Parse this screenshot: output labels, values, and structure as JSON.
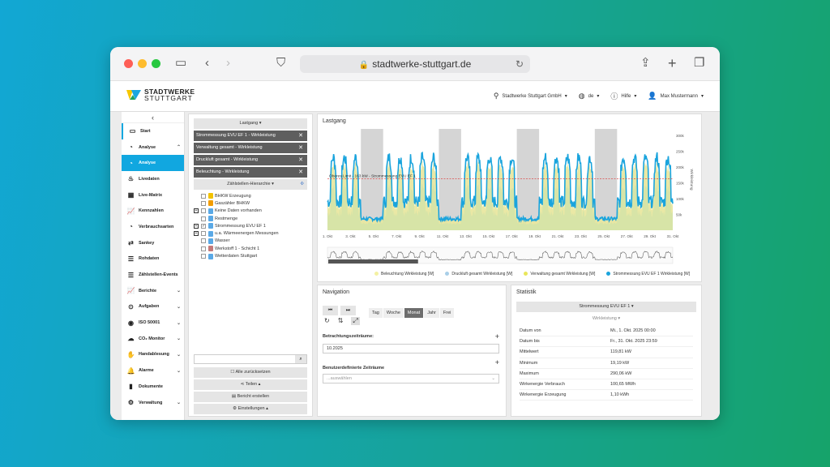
{
  "browser": {
    "url": "stadtwerke-stuttgart.de"
  },
  "header": {
    "logo_line1": "STADTWERKE",
    "logo_line2": "STUTTGART",
    "company": "Stadtwerke Stuttgart GmbH",
    "language": "de",
    "help": "Hilfe",
    "user": "Max Mustermann"
  },
  "sidebar": {
    "items": [
      {
        "label": "Start",
        "icon": "monitor-icon"
      },
      {
        "label": "Analyse",
        "icon": "pie-icon"
      },
      {
        "label": "Analyse",
        "icon": "pie-icon"
      },
      {
        "label": "Livedaten",
        "icon": "live-icon"
      },
      {
        "label": "Live-Matrix",
        "icon": "grid-icon"
      },
      {
        "label": "Kennzahlen",
        "icon": "chart-icon"
      },
      {
        "label": "Verbrauchsarten",
        "icon": "pie-icon"
      },
      {
        "label": "Sankey",
        "icon": "shuffle-icon"
      },
      {
        "label": "Rohdaten",
        "icon": "list-icon"
      },
      {
        "label": "Zählstellen-Events",
        "icon": "list-icon"
      },
      {
        "label": "Berichte",
        "icon": "chart-icon"
      },
      {
        "label": "Aufgaben",
        "icon": "task-icon"
      },
      {
        "label": "ISO 50001",
        "icon": "iso-icon"
      },
      {
        "label": "CO₂ Monitor",
        "icon": "cloud-icon"
      },
      {
        "label": "Handablesung",
        "icon": "hand-icon"
      },
      {
        "label": "Alarme",
        "icon": "bell-icon"
      },
      {
        "label": "Dokumente",
        "icon": "folder-icon"
      },
      {
        "label": "Verwaltung",
        "icon": "gear-icon"
      }
    ]
  },
  "selection": {
    "lastgang_label": "Lastgang ▾",
    "rows": [
      "Strommessung EVU EF 1 - Wirkleistung",
      "Verwaltung gesamt - Wirkleistung",
      "Druckluft gesamt - Wirkleistung",
      "Beleuchtung - Wirkleistung"
    ],
    "hierarchy_label": "Zählstellen-Hierarchie ▾",
    "tree": [
      "BHKW Erzeugung",
      "Gaszähler BHKW",
      "Keine Daten vorhanden",
      "Restmenge",
      "Strommessung EVU EF 1",
      "u.a. Wärmeenergen Messungen",
      "Wasser",
      "Werkstoff 1 - Schicht 1",
      "Wetterdaten Stuttgart"
    ],
    "reset": "Alle zurücksetzen",
    "share": "Teilen ▴",
    "report": "Bericht erstellen",
    "settings": "Einstellungen ▴"
  },
  "chart_panel": {
    "title": "Lastgang",
    "limit_label": "Oberes Limit - 163 kW - Strommessung EVU EF 1",
    "ylabel": "Wirkleistung"
  },
  "chart_data": {
    "type": "area",
    "x": [
      "1. Okt",
      "3. Okt",
      "5. Okt",
      "7. Okt",
      "9. Okt",
      "11. Okt",
      "13. Okt",
      "15. Okt",
      "17. Okt",
      "19. Okt",
      "21. Okt",
      "23. Okt",
      "25. Okt",
      "27. Okt",
      "29. Okt",
      "31. Okt"
    ],
    "y_ticks": [
      "300k",
      "250k",
      "200k",
      "150k",
      "100k",
      "50k"
    ],
    "series": [
      {
        "name": "Beleuchtung Wirkleistung [W]",
        "color": "#f4f1a3"
      },
      {
        "name": "Druckluft gesamt Wirkleistung [W]",
        "color": "#a9cfe8"
      },
      {
        "name": "Verwaltung gesamt Wirkleistung [W]",
        "color": "#e9e65a"
      },
      {
        "name": "Strommessung EVU EF 1 Wirkleistung [W]",
        "color": "#1aa4dd"
      }
    ],
    "limit": 163000,
    "weekend_bands": [
      "4.-5. Okt",
      "11.-12. Okt",
      "18.-19. Okt",
      "25.-26. Okt"
    ]
  },
  "navigation": {
    "title": "Navigation",
    "tabs": [
      "Tag",
      "Woche",
      "Monat",
      "Jahr",
      "Frei"
    ],
    "active_tab": "Monat",
    "period_label": "Betrachtungszeiträume:",
    "period_value": "10.2025",
    "custom_label": "Benutzerdefinierte Zeiträume",
    "custom_placeholder": "...auswählen"
  },
  "statistik": {
    "title": "Statistik",
    "meter": "Strommessung EVU EF 1 ▾",
    "metric": "Wirkleistung ▾",
    "rows": [
      {
        "k": "Datum von",
        "v": "Mi., 1. Okt. 2025 00:00"
      },
      {
        "k": "Datum bis",
        "v": "Fr., 31. Okt. 2025 23:59"
      },
      {
        "k": "Mittelwert",
        "v": "119,81 kW"
      },
      {
        "k": "Minimum",
        "v": "19,19 kW"
      },
      {
        "k": "Maximum",
        "v": "290,06 kW"
      },
      {
        "k": "Wirkenergie Verbrauch",
        "v": "100,65 MWh"
      },
      {
        "k": "Wirkenergie Erzeugung",
        "v": "1,10 kWh"
      }
    ]
  }
}
